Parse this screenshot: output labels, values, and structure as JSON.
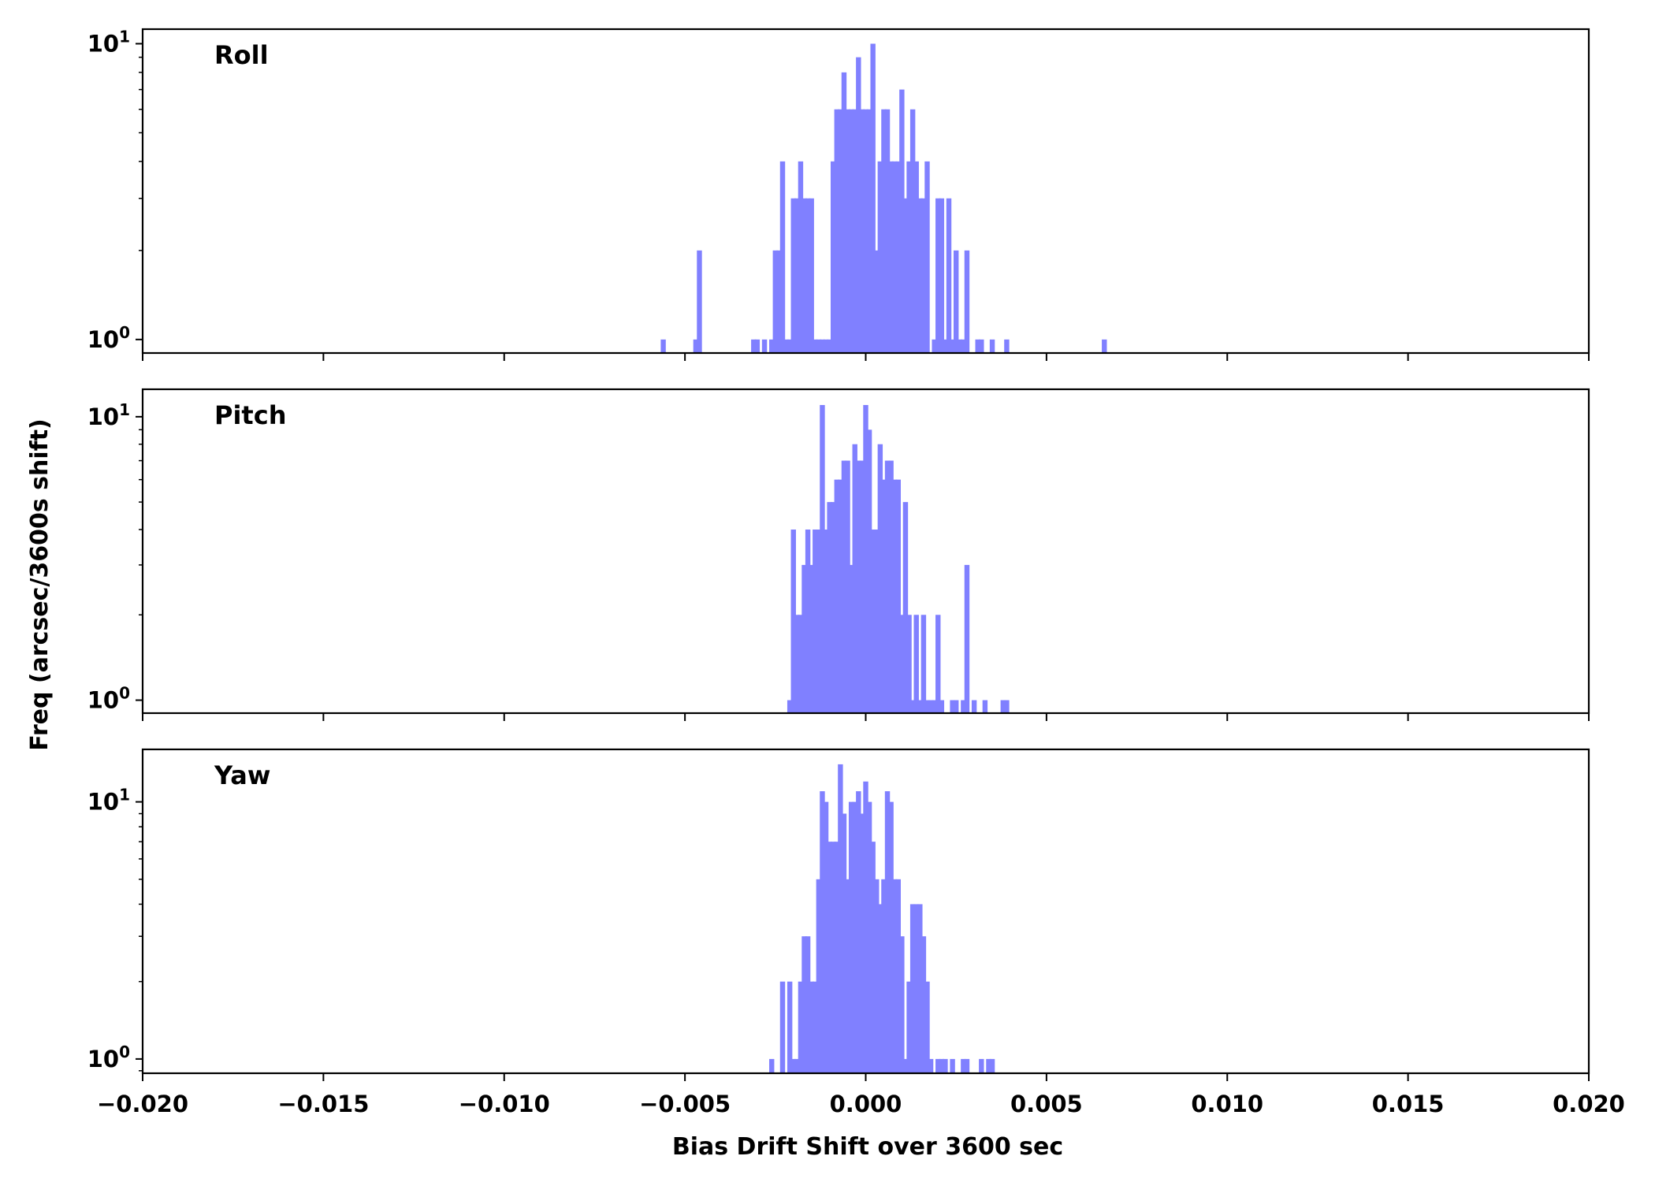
{
  "chart_data": {
    "type": "bar",
    "subtype": "histogram",
    "layout": "three stacked panels with shared x axis",
    "xlabel": "Bias Drift Shift over 3600 sec",
    "ylabel": "Freq (arcsec/3600s shift)",
    "xlim": [
      -0.02,
      0.02
    ],
    "xticks": [
      -0.02,
      -0.015,
      -0.01,
      -0.005,
      0.0,
      0.005,
      0.01,
      0.015,
      0.02
    ],
    "xtick_labels": [
      "−0.020",
      "−0.015",
      "−0.010",
      "−0.005",
      "0.000",
      "0.005",
      "0.010",
      "0.015",
      "0.020"
    ],
    "yscale": "log",
    "ytick_labels": [
      {
        "value": 1,
        "base": "10",
        "exp": "0"
      },
      {
        "value": 10,
        "base": "10",
        "exp": "1"
      }
    ],
    "bar_color": "#8080ff",
    "bin_width": 0.00014,
    "grid": false,
    "panels": [
      {
        "label": "Roll",
        "ylim": [
          0.9,
          11.2
        ],
        "bins": [
          [
            -0.0056,
            1
          ],
          [
            -0.0047,
            1
          ],
          [
            -0.0046,
            2
          ],
          [
            -0.0031,
            1
          ],
          [
            -0.003,
            1
          ],
          [
            -0.0028,
            1
          ],
          [
            -0.0026,
            1
          ],
          [
            -0.0025,
            2
          ],
          [
            -0.0024,
            2
          ],
          [
            -0.0023,
            4
          ],
          [
            -0.0022,
            1
          ],
          [
            -0.0021,
            1
          ],
          [
            -0.002,
            3
          ],
          [
            -0.0019,
            3
          ],
          [
            -0.0018,
            4
          ],
          [
            -0.0017,
            3
          ],
          [
            -0.0016,
            3
          ],
          [
            -0.0015,
            3
          ],
          [
            -0.0014,
            1
          ],
          [
            -0.0013,
            1
          ],
          [
            -0.0012,
            1
          ],
          [
            -0.0011,
            1
          ],
          [
            -0.001,
            1
          ],
          [
            -0.0009,
            4
          ],
          [
            -0.0008,
            6
          ],
          [
            -0.0007,
            6
          ],
          [
            -0.0006,
            8
          ],
          [
            -0.0005,
            6
          ],
          [
            -0.0004,
            6
          ],
          [
            -0.0003,
            6
          ],
          [
            -0.0002,
            9
          ],
          [
            -0.0001,
            6
          ],
          [
            0.0,
            6
          ],
          [
            0.0001,
            6
          ],
          [
            0.0002,
            10
          ],
          [
            0.0003,
            2
          ],
          [
            0.0004,
            4
          ],
          [
            0.0005,
            6
          ],
          [
            0.0006,
            6
          ],
          [
            0.0007,
            4
          ],
          [
            0.0008,
            4
          ],
          [
            0.0009,
            4
          ],
          [
            0.001,
            7
          ],
          [
            0.0011,
            3
          ],
          [
            0.0012,
            4
          ],
          [
            0.0013,
            6
          ],
          [
            0.0014,
            4
          ],
          [
            0.0015,
            3
          ],
          [
            0.0016,
            3
          ],
          [
            0.0017,
            4
          ],
          [
            0.0019,
            1
          ],
          [
            0.002,
            3
          ],
          [
            0.0021,
            3
          ],
          [
            0.0022,
            1
          ],
          [
            0.0023,
            3
          ],
          [
            0.0024,
            1
          ],
          [
            0.0025,
            2
          ],
          [
            0.0026,
            1
          ],
          [
            0.0027,
            1
          ],
          [
            0.0028,
            2
          ],
          [
            0.0031,
            1
          ],
          [
            0.0032,
            1
          ],
          [
            0.0035,
            1
          ],
          [
            0.0039,
            1
          ],
          [
            0.0066,
            1
          ]
        ]
      },
      {
        "label": "Pitch",
        "ylim": [
          0.9,
          12.5
        ],
        "bins": [
          [
            -0.0021,
            1
          ],
          [
            -0.002,
            4
          ],
          [
            -0.0019,
            2
          ],
          [
            -0.0018,
            2
          ],
          [
            -0.0017,
            3
          ],
          [
            -0.0016,
            4
          ],
          [
            -0.0015,
            3
          ],
          [
            -0.0014,
            4
          ],
          [
            -0.0013,
            4
          ],
          [
            -0.0012,
            11
          ],
          [
            -0.0011,
            4
          ],
          [
            -0.001,
            5
          ],
          [
            -0.0009,
            5
          ],
          [
            -0.0008,
            6
          ],
          [
            -0.0007,
            6
          ],
          [
            -0.0006,
            7
          ],
          [
            -0.0005,
            7
          ],
          [
            -0.0004,
            3
          ],
          [
            -0.0003,
            8
          ],
          [
            -0.0002,
            7
          ],
          [
            -0.0001,
            7
          ],
          [
            0.0,
            11
          ],
          [
            0.0001,
            9
          ],
          [
            0.0002,
            4
          ],
          [
            0.0003,
            4
          ],
          [
            0.0004,
            8
          ],
          [
            0.0005,
            6
          ],
          [
            0.0006,
            7
          ],
          [
            0.0007,
            7
          ],
          [
            0.0008,
            6
          ],
          [
            0.0009,
            6
          ],
          [
            0.001,
            2
          ],
          [
            0.0011,
            5
          ],
          [
            0.0012,
            2
          ],
          [
            0.0013,
            1
          ],
          [
            0.0014,
            2
          ],
          [
            0.0015,
            1
          ],
          [
            0.0016,
            2
          ],
          [
            0.0017,
            1
          ],
          [
            0.0018,
            1
          ],
          [
            0.0019,
            1
          ],
          [
            0.002,
            2
          ],
          [
            0.0021,
            1
          ],
          [
            0.0024,
            1
          ],
          [
            0.0025,
            1
          ],
          [
            0.0027,
            1
          ],
          [
            0.0028,
            3
          ],
          [
            0.003,
            1
          ],
          [
            0.0033,
            1
          ],
          [
            0.0038,
            1
          ],
          [
            0.0039,
            1
          ]
        ]
      },
      {
        "label": "Yaw",
        "ylim": [
          0.88,
          16.0
        ],
        "bins": [
          [
            -0.0026,
            1
          ],
          [
            -0.0023,
            2
          ],
          [
            -0.0021,
            2
          ],
          [
            -0.002,
            1
          ],
          [
            -0.0019,
            1
          ],
          [
            -0.0018,
            2
          ],
          [
            -0.0017,
            3
          ],
          [
            -0.0016,
            3
          ],
          [
            -0.0015,
            2
          ],
          [
            -0.0014,
            2
          ],
          [
            -0.0013,
            5
          ],
          [
            -0.0012,
            11
          ],
          [
            -0.0011,
            10
          ],
          [
            -0.001,
            7
          ],
          [
            -0.0009,
            7
          ],
          [
            -0.0008,
            7
          ],
          [
            -0.0007,
            14
          ],
          [
            -0.0006,
            9
          ],
          [
            -0.0005,
            5
          ],
          [
            -0.0004,
            10
          ],
          [
            -0.0003,
            10
          ],
          [
            -0.0002,
            11
          ],
          [
            -0.0001,
            9
          ],
          [
            0.0,
            12
          ],
          [
            0.0001,
            10
          ],
          [
            0.0002,
            7
          ],
          [
            0.0003,
            5
          ],
          [
            0.0004,
            4
          ],
          [
            0.0005,
            5
          ],
          [
            0.0006,
            11
          ],
          [
            0.0007,
            10
          ],
          [
            0.0008,
            5
          ],
          [
            0.0009,
            5
          ],
          [
            0.001,
            3
          ],
          [
            0.0011,
            1
          ],
          [
            0.0012,
            2
          ],
          [
            0.0013,
            4
          ],
          [
            0.0014,
            4
          ],
          [
            0.0015,
            4
          ],
          [
            0.0016,
            3
          ],
          [
            0.0017,
            2
          ],
          [
            0.0018,
            1
          ],
          [
            0.002,
            1
          ],
          [
            0.0021,
            1
          ],
          [
            0.0022,
            1
          ],
          [
            0.0024,
            1
          ],
          [
            0.0027,
            1
          ],
          [
            0.0028,
            1
          ],
          [
            0.0032,
            1
          ],
          [
            0.0034,
            1
          ],
          [
            0.0035,
            1
          ]
        ]
      }
    ]
  }
}
